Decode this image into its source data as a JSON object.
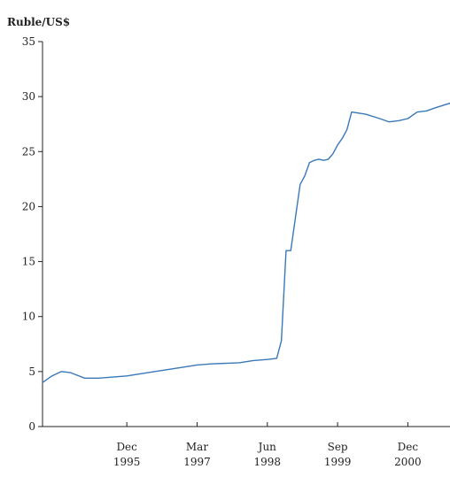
{
  "chart_data": {
    "type": "line",
    "title": "",
    "ylabel": "Ruble/US$",
    "xlabel": "",
    "ylim": [
      0,
      35
    ],
    "yticks": [
      0,
      5,
      10,
      15,
      20,
      25,
      30,
      35
    ],
    "xlim": [
      "1994-06",
      "2001-09"
    ],
    "xticks": [
      {
        "date": "1995-12",
        "label_top": "Dec",
        "label_bottom": "1995"
      },
      {
        "date": "1997-03",
        "label_top": "Mar",
        "label_bottom": "1997"
      },
      {
        "date": "1998-06",
        "label_top": "Jun",
        "label_bottom": "1998"
      },
      {
        "date": "1999-09",
        "label_top": "Sep",
        "label_bottom": "1999"
      },
      {
        "date": "2000-12",
        "label_top": "Dec",
        "label_bottom": "2000"
      }
    ],
    "grid": false,
    "line_color": "#3a78b8",
    "series": [
      {
        "points": [
          [
            "1994-06",
            4.0
          ],
          [
            "1994-08",
            4.6
          ],
          [
            "1994-10",
            5.0
          ],
          [
            "1994-12",
            4.9
          ],
          [
            "1995-03",
            4.4
          ],
          [
            "1995-06",
            4.4
          ],
          [
            "1995-09",
            4.5
          ],
          [
            "1995-12",
            4.6
          ],
          [
            "1996-06",
            5.0
          ],
          [
            "1996-12",
            5.4
          ],
          [
            "1997-03",
            5.6
          ],
          [
            "1997-06",
            5.7
          ],
          [
            "1997-12",
            5.8
          ],
          [
            "1998-03",
            6.0
          ],
          [
            "1998-06",
            6.1
          ],
          [
            "1998-08",
            6.2
          ],
          [
            "1998-09",
            7.8
          ],
          [
            "1998-10",
            16.0
          ],
          [
            "1998-11",
            16.0
          ],
          [
            "1998-12",
            19.0
          ],
          [
            "1999-01",
            22.0
          ],
          [
            "1999-02",
            22.8
          ],
          [
            "1999-03",
            24.0
          ],
          [
            "1999-04",
            24.2
          ],
          [
            "1999-05",
            24.3
          ],
          [
            "1999-06",
            24.2
          ],
          [
            "1999-07",
            24.3
          ],
          [
            "1999-08",
            24.8
          ],
          [
            "1999-09",
            25.6
          ],
          [
            "1999-10",
            26.2
          ],
          [
            "1999-11",
            27.0
          ],
          [
            "1999-12",
            28.6
          ],
          [
            "2000-03",
            28.4
          ],
          [
            "2000-06",
            28.0
          ],
          [
            "2000-08",
            27.7
          ],
          [
            "2000-10",
            27.8
          ],
          [
            "2000-12",
            28.0
          ],
          [
            "2001-02",
            28.6
          ],
          [
            "2001-04",
            28.7
          ],
          [
            "2001-06",
            29.0
          ],
          [
            "2001-09",
            29.4
          ]
        ]
      }
    ]
  }
}
